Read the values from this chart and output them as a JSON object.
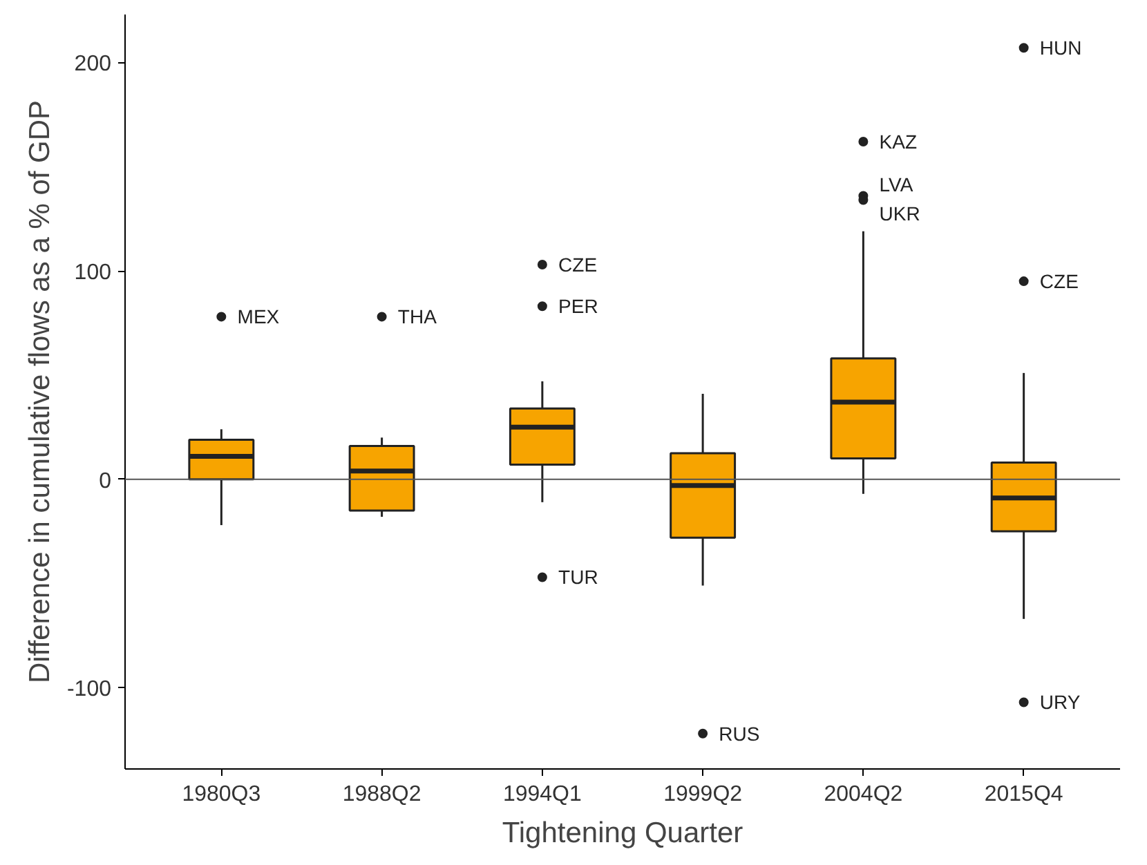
{
  "chart_data": {
    "type": "box",
    "xlabel": "Tightening Quarter",
    "ylabel": "Difference in cumulative flows as a % of GDP",
    "categories": [
      "1980Q3",
      "1988Q2",
      "1994Q1",
      "1999Q2",
      "2004Q2",
      "2015Q4"
    ],
    "color": "#f7a400",
    "boxes": [
      {
        "low": -22,
        "q1": 0,
        "median": 11,
        "q3": 19,
        "high": 24
      },
      {
        "low": -18,
        "q1": -15,
        "median": 4,
        "q3": 16,
        "high": 20
      },
      {
        "low": -11,
        "q1": 7,
        "median": 25,
        "q3": 34,
        "high": 47
      },
      {
        "low": -51,
        "q1": -28,
        "median": -3,
        "q3": 12.5,
        "high": 41
      },
      {
        "low": -7,
        "q1": 10,
        "median": 37,
        "q3": 58,
        "high": 119
      },
      {
        "low": -67,
        "q1": -25,
        "median": -9,
        "q3": 8,
        "high": 51
      }
    ],
    "series": [
      {
        "type": "scatter",
        "color": "#222222",
        "x": [
          "1980Q3",
          "1988Q2",
          "1994Q1",
          "1994Q1",
          "1994Q1",
          "1999Q2",
          "2004Q2",
          "2004Q2",
          "2004Q2",
          "2015Q4",
          "2015Q4",
          "2015Q4"
        ],
        "values": [
          78,
          78,
          103,
          83,
          -47,
          -122,
          162,
          136,
          134,
          207,
          95,
          -107
        ]
      }
    ],
    "ylim": [
      -139,
      223
    ],
    "yticks": [
      -100,
      0,
      100,
      200
    ],
    "grid": false,
    "ref_lines": [
      {
        "axis": "y",
        "value": 0,
        "color": "#555555"
      }
    ],
    "annotations": [
      {
        "text": "MEX",
        "x": "1980Q3",
        "y": 78
      },
      {
        "text": "THA",
        "x": "1988Q2",
        "y": 78
      },
      {
        "text": "CZE",
        "x": "1994Q1",
        "y": 103
      },
      {
        "text": "PER",
        "x": "1994Q1",
        "y": 83
      },
      {
        "text": "TUR",
        "x": "1994Q1",
        "y": -47
      },
      {
        "text": "RUS",
        "x": "1999Q2",
        "y": -122
      },
      {
        "text": "KAZ",
        "x": "2004Q2",
        "y": 162
      },
      {
        "text": "LVA",
        "x": "2004Q2",
        "y": 136
      },
      {
        "text": "UKR",
        "x": "2004Q2",
        "y": 134
      },
      {
        "text": "HUN",
        "x": "2015Q4",
        "y": 207
      },
      {
        "text": "CZE",
        "x": "2015Q4",
        "y": 95
      },
      {
        "text": "URY",
        "x": "2015Q4",
        "y": -107
      }
    ]
  }
}
